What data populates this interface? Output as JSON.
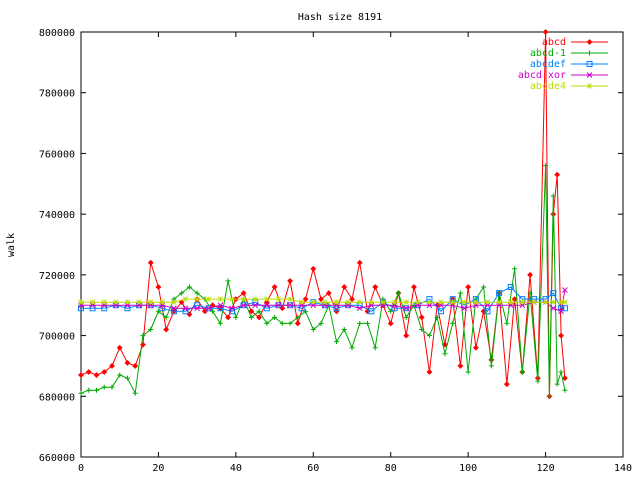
{
  "chart_data": {
    "type": "line",
    "title": "Hash size 8191",
    "xlabel": "",
    "ylabel": "walk",
    "xlim": [
      0,
      140
    ],
    "ylim": [
      660000,
      800000
    ],
    "xticks": [
      0,
      20,
      40,
      60,
      80,
      100,
      120,
      140
    ],
    "yticks": [
      660000,
      680000,
      700000,
      720000,
      740000,
      760000,
      780000,
      800000
    ],
    "grid": false,
    "legend_position": "top-right",
    "series": [
      {
        "name": "abcd",
        "color": "#ff0000",
        "marker": "diamond",
        "x": [
          0,
          2,
          4,
          6,
          8,
          10,
          12,
          14,
          16,
          18,
          20,
          22,
          24,
          26,
          28,
          30,
          32,
          34,
          36,
          38,
          40,
          42,
          44,
          46,
          48,
          50,
          52,
          54,
          56,
          58,
          60,
          62,
          64,
          66,
          68,
          70,
          72,
          74,
          76,
          78,
          80,
          82,
          84,
          86,
          88,
          90,
          92,
          94,
          96,
          98,
          100,
          102,
          104,
          106,
          108,
          110,
          112,
          114,
          116,
          118,
          120,
          121,
          122,
          123,
          124,
          125
        ],
        "y": [
          687000,
          688000,
          687000,
          688000,
          690000,
          696000,
          691000,
          690000,
          697000,
          724000,
          716000,
          702000,
          708000,
          711000,
          707000,
          712000,
          708000,
          710000,
          709000,
          706000,
          712000,
          714000,
          708000,
          706000,
          711000,
          716000,
          709000,
          718000,
          704000,
          712000,
          722000,
          712000,
          714000,
          708000,
          716000,
          712000,
          724000,
          708000,
          716000,
          710000,
          704000,
          714000,
          700000,
          716000,
          706000,
          688000,
          710000,
          697000,
          712000,
          690000,
          716000,
          696000,
          708000,
          692000,
          714000,
          684000,
          712000,
          688000,
          720000,
          686000,
          800000,
          680000,
          740000,
          753000,
          700000,
          686000
        ]
      },
      {
        "name": "abcd-1",
        "color": "#00aa00",
        "marker": "plus",
        "x": [
          0,
          2,
          4,
          6,
          8,
          10,
          12,
          14,
          16,
          18,
          20,
          22,
          24,
          26,
          28,
          30,
          32,
          34,
          36,
          38,
          40,
          42,
          44,
          46,
          48,
          50,
          52,
          54,
          56,
          58,
          60,
          62,
          64,
          66,
          68,
          70,
          72,
          74,
          76,
          78,
          80,
          82,
          84,
          86,
          88,
          90,
          92,
          94,
          96,
          98,
          100,
          102,
          104,
          106,
          108,
          110,
          112,
          114,
          116,
          118,
          120,
          121,
          122,
          123,
          124,
          125
        ],
        "y": [
          681000,
          682000,
          682000,
          683000,
          683000,
          687000,
          686000,
          681000,
          700000,
          702000,
          708000,
          706000,
          712000,
          714000,
          716000,
          714000,
          712000,
          708000,
          704000,
          718000,
          706000,
          712000,
          706000,
          708000,
          704000,
          706000,
          704000,
          704000,
          706000,
          708000,
          702000,
          704000,
          710000,
          698000,
          702000,
          696000,
          704000,
          704000,
          696000,
          712000,
          708000,
          714000,
          706000,
          710000,
          702000,
          700000,
          706000,
          694000,
          704000,
          714000,
          688000,
          712000,
          716000,
          690000,
          714000,
          704000,
          722000,
          688000,
          714000,
          685000,
          756000,
          680000,
          746000,
          684000,
          688000,
          682000
        ]
      },
      {
        "name": "abcdef",
        "color": "#0080ff",
        "marker": "square",
        "x": [
          0,
          3,
          6,
          9,
          12,
          15,
          18,
          21,
          24,
          27,
          30,
          33,
          36,
          39,
          42,
          45,
          48,
          51,
          54,
          57,
          60,
          63,
          66,
          69,
          72,
          75,
          78,
          81,
          84,
          87,
          90,
          93,
          96,
          99,
          102,
          105,
          108,
          111,
          114,
          117,
          120,
          122,
          124,
          125
        ],
        "y": [
          709000,
          709000,
          709000,
          710000,
          709000,
          710000,
          710000,
          709000,
          708000,
          708000,
          710000,
          709000,
          709000,
          708000,
          710000,
          711000,
          709000,
          710000,
          710000,
          709000,
          711000,
          710000,
          709000,
          710000,
          710000,
          708000,
          711000,
          709000,
          709000,
          710000,
          712000,
          708000,
          712000,
          710000,
          712000,
          708000,
          714000,
          716000,
          712000,
          712000,
          712000,
          714000,
          709000,
          709000
        ]
      },
      {
        "name": "abcd xor",
        "color": "#cc00cc",
        "marker": "x",
        "x": [
          0,
          3,
          6,
          9,
          12,
          15,
          18,
          21,
          24,
          27,
          30,
          33,
          36,
          39,
          42,
          45,
          48,
          51,
          54,
          57,
          60,
          63,
          66,
          69,
          72,
          75,
          78,
          81,
          84,
          87,
          90,
          93,
          96,
          99,
          102,
          105,
          108,
          111,
          114,
          117,
          120,
          122,
          124,
          125
        ],
        "y": [
          710000,
          710000,
          710000,
          710000,
          710000,
          710000,
          710000,
          710000,
          709000,
          709000,
          709000,
          709000,
          710000,
          709000,
          710000,
          710000,
          710000,
          710000,
          710000,
          710000,
          710000,
          710000,
          710000,
          710000,
          709000,
          710000,
          710000,
          710000,
          709000,
          710000,
          710000,
          710000,
          710000,
          709000,
          710000,
          710000,
          710000,
          710000,
          710000,
          711000,
          711000,
          709000,
          708000,
          715000
        ]
      },
      {
        "name": "abcde4",
        "color": "#bbdd00",
        "marker": "star",
        "x": [
          0,
          3,
          6,
          9,
          12,
          15,
          18,
          21,
          24,
          27,
          30,
          33,
          36,
          39,
          42,
          45,
          48,
          51,
          54,
          57,
          60,
          63,
          66,
          69,
          72,
          75,
          78,
          81,
          84,
          87,
          90,
          93,
          96,
          99,
          102,
          105,
          108,
          111,
          114,
          117,
          120,
          122,
          124,
          125
        ],
        "y": [
          711000,
          711000,
          711000,
          711000,
          711000,
          711000,
          711000,
          711000,
          711000,
          712000,
          712000,
          712000,
          712000,
          712000,
          712000,
          712000,
          712000,
          712000,
          712000,
          711000,
          711000,
          711000,
          711000,
          711000,
          711000,
          711000,
          711000,
          711000,
          711000,
          711000,
          711000,
          711000,
          711000,
          711000,
          711000,
          711000,
          711000,
          711000,
          711000,
          711000,
          711000,
          711000,
          711000,
          711000
        ]
      }
    ]
  }
}
